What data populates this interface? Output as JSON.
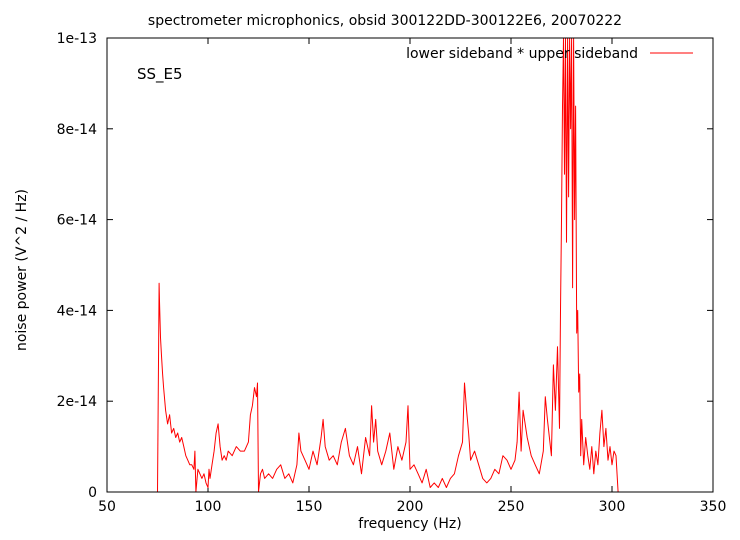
{
  "chart_data": {
    "type": "line",
    "title": "spectrometer microphonics, obsid 300122DD-300122E6, 20070222",
    "xlabel": "frequency (Hz)",
    "ylabel": "noise power (V^2 / Hz)",
    "annotation": "SS_E5",
    "xlim": [
      50,
      350
    ],
    "ylim": [
      0,
      1e-13
    ],
    "x_ticks": [
      50,
      100,
      150,
      200,
      250,
      300,
      350
    ],
    "x_tick_labels": [
      "50",
      "100",
      "150",
      "200",
      "250",
      "300",
      "350"
    ],
    "y_ticks": [
      0,
      2e-14,
      4e-14,
      6e-14,
      8e-14,
      1e-13
    ],
    "y_tick_labels": [
      "0",
      "2e-14",
      "4e-14",
      "6e-14",
      "8e-14",
      "1e-13"
    ],
    "legend_position": "top-right",
    "series": [
      {
        "name": "lower sideband * upper sideband",
        "color": "#ff0000",
        "x": [
          75,
          75.8,
          76,
          76.5,
          77,
          77.5,
          78,
          79,
          80,
          81,
          82,
          83,
          84,
          85,
          86,
          87,
          88,
          89,
          90,
          91,
          92,
          93,
          93.5,
          94,
          95,
          96,
          97,
          98,
          99,
          100,
          100.5,
          101,
          102,
          103,
          104,
          105,
          106,
          107,
          108,
          109,
          110,
          112,
          114,
          116,
          118,
          120,
          121,
          122,
          123,
          124,
          124.5,
          125,
          126,
          127,
          128,
          130,
          132,
          134,
          136,
          138,
          140,
          142,
          144,
          145,
          146,
          148,
          150,
          152,
          154,
          156,
          157,
          158,
          160,
          162,
          164,
          166,
          168,
          170,
          172,
          174,
          176,
          178,
          180,
          181,
          182,
          183,
          184,
          186,
          188,
          190,
          192,
          194,
          196,
          198,
          199,
          200,
          202,
          204,
          206,
          208,
          210,
          212,
          214,
          216,
          218,
          220,
          222,
          224,
          226,
          227,
          228,
          229,
          230,
          232,
          234,
          236,
          238,
          240,
          242,
          244,
          246,
          248,
          250,
          252,
          253,
          254,
          255,
          256,
          258,
          260,
          262,
          264,
          266,
          267,
          268,
          270,
          271,
          272,
          273,
          274,
          274.5,
          275,
          275.5,
          276,
          276.5,
          277,
          277.5,
          278,
          278.5,
          279,
          279.5,
          280,
          280.5,
          281,
          281.5,
          282,
          282.5,
          283,
          283.5,
          284,
          284.5,
          285,
          286,
          287,
          288,
          289,
          290,
          291,
          292,
          293,
          294,
          295,
          296,
          297,
          298,
          299,
          300,
          301,
          302,
          303
        ],
        "y": [
          0,
          4.6e-14,
          4.2e-14,
          3.4e-14,
          3e-14,
          2.6e-14,
          2.3e-14,
          1.8e-14,
          1.5e-14,
          1.7e-14,
          1.3e-14,
          1.4e-14,
          1.2e-14,
          1.3e-14,
          1.1e-14,
          1.2e-14,
          1e-14,
          8e-15,
          7e-15,
          6e-15,
          6e-15,
          5e-15,
          9e-15,
          0,
          5e-15,
          4e-15,
          3e-15,
          4e-15,
          2e-15,
          1e-15,
          5e-15,
          3e-15,
          6e-15,
          9e-15,
          1.3e-14,
          1.5e-14,
          1e-14,
          7e-15,
          8e-15,
          7e-15,
          9e-15,
          8e-15,
          1e-14,
          9e-15,
          9e-15,
          1.1e-14,
          1.7e-14,
          1.9e-14,
          2.3e-14,
          2.1e-14,
          2.4e-14,
          0,
          4e-15,
          5e-15,
          3e-15,
          4e-15,
          3e-15,
          5e-15,
          6e-15,
          3e-15,
          4e-15,
          2e-15,
          6e-15,
          1.3e-14,
          9e-15,
          7e-15,
          5e-15,
          9e-15,
          6e-15,
          1.2e-14,
          1.6e-14,
          1e-14,
          7e-15,
          8e-15,
          6e-15,
          1.1e-14,
          1.4e-14,
          8e-15,
          6e-15,
          1e-14,
          4e-15,
          1.2e-14,
          8e-15,
          1.9e-14,
          1.1e-14,
          1.6e-14,
          9e-15,
          6e-15,
          9e-15,
          1.3e-14,
          5e-15,
          1e-14,
          7e-15,
          1.1e-14,
          1.9e-14,
          5e-15,
          6e-15,
          4e-15,
          2e-15,
          5e-15,
          1e-15,
          2e-15,
          1e-15,
          3e-15,
          1e-15,
          3e-15,
          4e-15,
          8e-15,
          1.1e-14,
          2.4e-14,
          1.8e-14,
          1.3e-14,
          7e-15,
          9e-15,
          6e-15,
          3e-15,
          2e-15,
          3e-15,
          5e-15,
          4e-15,
          8e-15,
          7e-15,
          5e-15,
          7e-15,
          1.1e-14,
          2.2e-14,
          9e-15,
          1.8e-14,
          1.2e-14,
          8e-15,
          6e-15,
          4e-15,
          9e-15,
          2.1e-14,
          1.6e-14,
          8e-15,
          2.8e-14,
          1.8e-14,
          3.2e-14,
          1.4e-14,
          4e-14,
          6e-14,
          8.5e-14,
          1e-13,
          7e-14,
          1e-13,
          5.5e-14,
          1e-13,
          6.5e-14,
          1e-13,
          8e-14,
          1e-13,
          4.5e-14,
          1e-13,
          6e-14,
          8.5e-14,
          3.5e-14,
          4e-14,
          2.2e-14,
          2.6e-14,
          8e-15,
          1.6e-14,
          6e-15,
          1.2e-14,
          8e-15,
          5e-15,
          1e-14,
          4e-15,
          9e-15,
          6e-15,
          1.3e-14,
          1.8e-14,
          1e-14,
          1.4e-14,
          7e-15,
          1e-14,
          6e-15,
          9e-15,
          8e-15,
          0
        ]
      }
    ]
  }
}
